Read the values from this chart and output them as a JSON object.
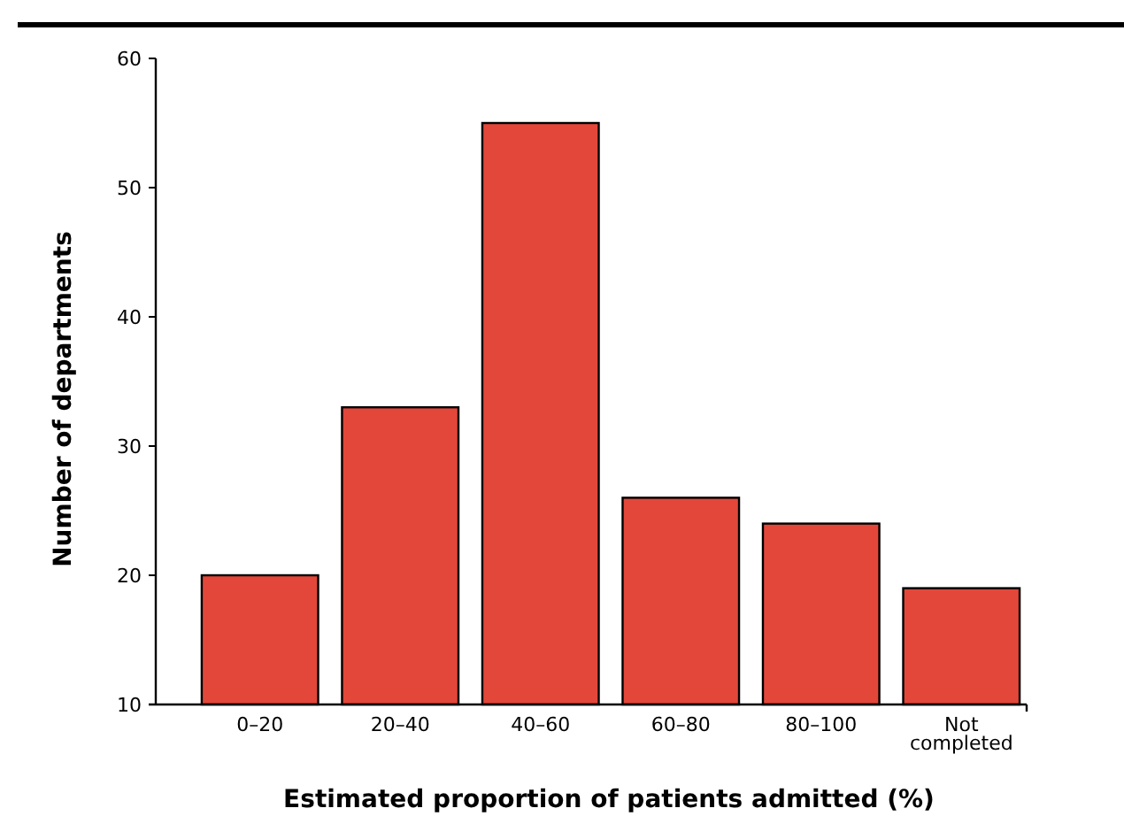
{
  "chart_data": {
    "type": "bar",
    "xlabel": "Estimated proportion of patients admitted (%)",
    "ylabel": "Number of departments",
    "categories": [
      "0–20",
      "20–40",
      "40–60",
      "60–80",
      "80–100",
      "Not completed"
    ],
    "values": [
      20,
      33,
      55,
      26,
      24,
      19
    ],
    "color": "#e2473a",
    "ylim": [
      10,
      60
    ],
    "yticks": [
      10,
      20,
      30,
      40,
      50,
      60
    ],
    "grid": false
  }
}
